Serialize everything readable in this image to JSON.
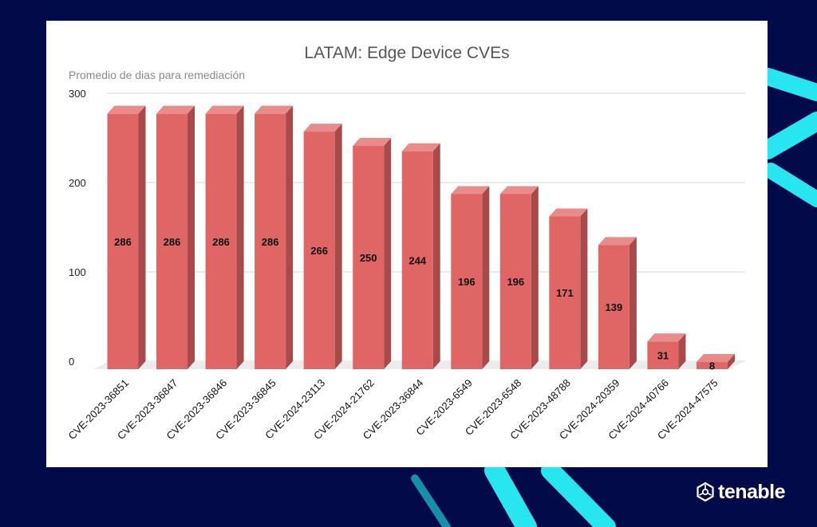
{
  "colors": {
    "background": "#030a4a",
    "accent_stripe": "#27e6f0",
    "bar_front": "#e06666",
    "bar_side": "#a94a4a",
    "bar_top": "#e98b8b",
    "grid": "#d9d9d9"
  },
  "brand": {
    "name": "tenable",
    "icon": "tenable-logo-icon"
  },
  "chart_data": {
    "type": "bar",
    "title": "LATAM: Edge Device CVEs",
    "subtitle": "Promedio de dias para remediación",
    "xlabel": "",
    "ylabel": "",
    "ylim": [
      0,
      300
    ],
    "yticks": [
      0,
      100,
      200,
      300
    ],
    "grid": true,
    "legend": "none",
    "categories": [
      "CVE-2023-36851",
      "CVE-2023-36847",
      "CVE-2023-36846",
      "CVE-2023-36845",
      "CVE-2024-23113",
      "CVE-2024-21762",
      "CVE-2023-36844",
      "CVE-2023-6549",
      "CVE-2023-6548",
      "CVE-2023-48788",
      "CVE-2024-20359",
      "CVE-2024-40766",
      "CVE-2024-47575"
    ],
    "values": [
      286,
      286,
      286,
      286,
      266,
      250,
      244,
      196,
      196,
      171,
      139,
      31,
      8
    ]
  }
}
